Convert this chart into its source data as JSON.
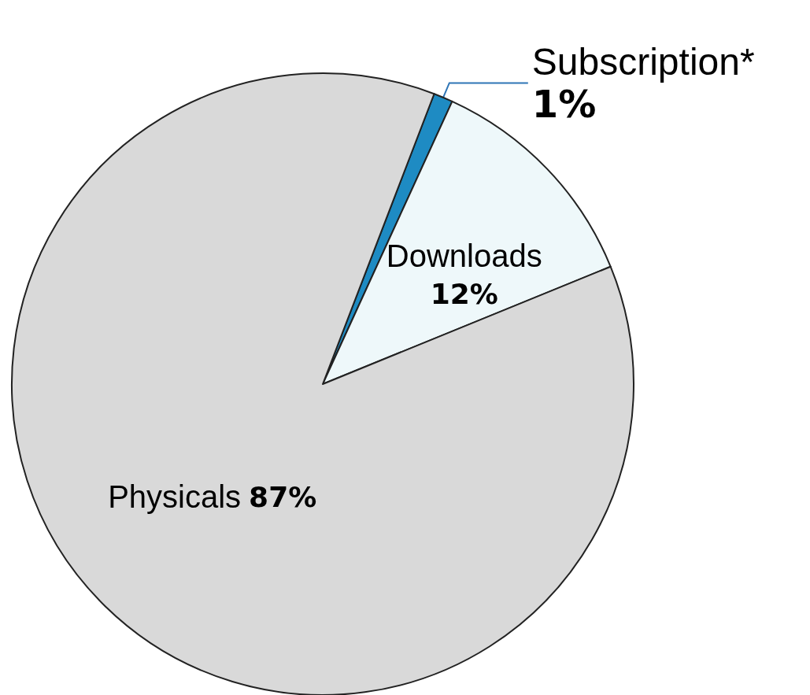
{
  "chart_data": {
    "type": "pie",
    "categories": [
      "Subscription*",
      "Downloads",
      "Physicals"
    ],
    "values": [
      1,
      12,
      87
    ],
    "colors": [
      "#1e8bc3",
      "#eef8fa",
      "#d9d9d9"
    ],
    "value_labels": [
      "1%",
      "12%",
      "87%"
    ],
    "legend": false
  }
}
